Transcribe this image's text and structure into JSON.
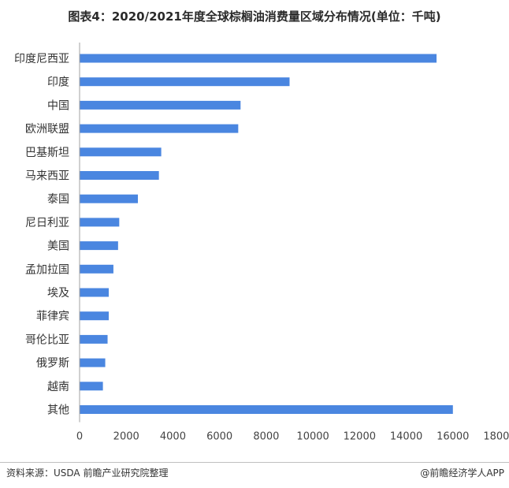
{
  "title": "图表4：2020/2021年度全球棕榈油消费量区域分布情况(单位：千吨)",
  "source": "资料来源：USDA 前瞻产业研究院整理",
  "brand": "@前瞻经济学人APP",
  "chart_data": {
    "type": "bar",
    "orientation": "horizontal",
    "categories": [
      "印度尼西亚",
      "印度",
      "中国",
      "欧洲联盟",
      "巴基斯坦",
      "马来西亚",
      "泰国",
      "尼日利亚",
      "美国",
      "孟加拉国",
      "埃及",
      "菲律宾",
      "哥伦比亚",
      "俄罗斯",
      "越南",
      "其他"
    ],
    "values": [
      15300,
      9000,
      6900,
      6800,
      3500,
      3400,
      2500,
      1700,
      1650,
      1450,
      1250,
      1250,
      1200,
      1100,
      1000,
      16000
    ],
    "xlim": [
      0,
      18000
    ],
    "xticks": [
      "0",
      "2000",
      "4000",
      "6000",
      "8000",
      "10000",
      "12000",
      "14000",
      "16000",
      "18000"
    ],
    "bar_color": "#4a86e0",
    "grid": false,
    "legend": "none"
  }
}
